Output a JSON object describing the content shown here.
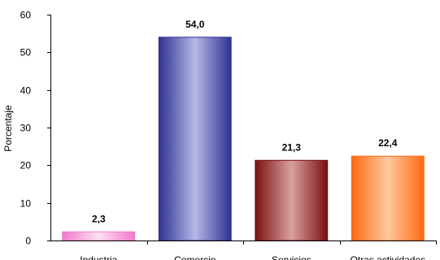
{
  "chart_data": {
    "type": "bar",
    "title": "",
    "xlabel": "",
    "ylabel": "Porcentaje",
    "ylim": [
      0,
      60
    ],
    "yticks": [
      0,
      10,
      20,
      30,
      40,
      50,
      60
    ],
    "grid": false,
    "legend": "none",
    "categories": [
      "Industria",
      "Comercio",
      "Servicios",
      "Otras actividades"
    ],
    "values": [
      2.3,
      54.0,
      21.3,
      22.4
    ],
    "value_labels": [
      "2,3",
      "54,0",
      "21,3",
      "22,4"
    ],
    "bar_colors": [
      {
        "edge": "#f07ac8",
        "center": "#fde0f2"
      },
      {
        "edge": "#2e3192",
        "center": "#b6b8e6"
      },
      {
        "edge": "#7a1010",
        "center": "#d9a0a0"
      },
      {
        "edge": "#ff6a10",
        "center": "#ffc8a0"
      }
    ]
  }
}
